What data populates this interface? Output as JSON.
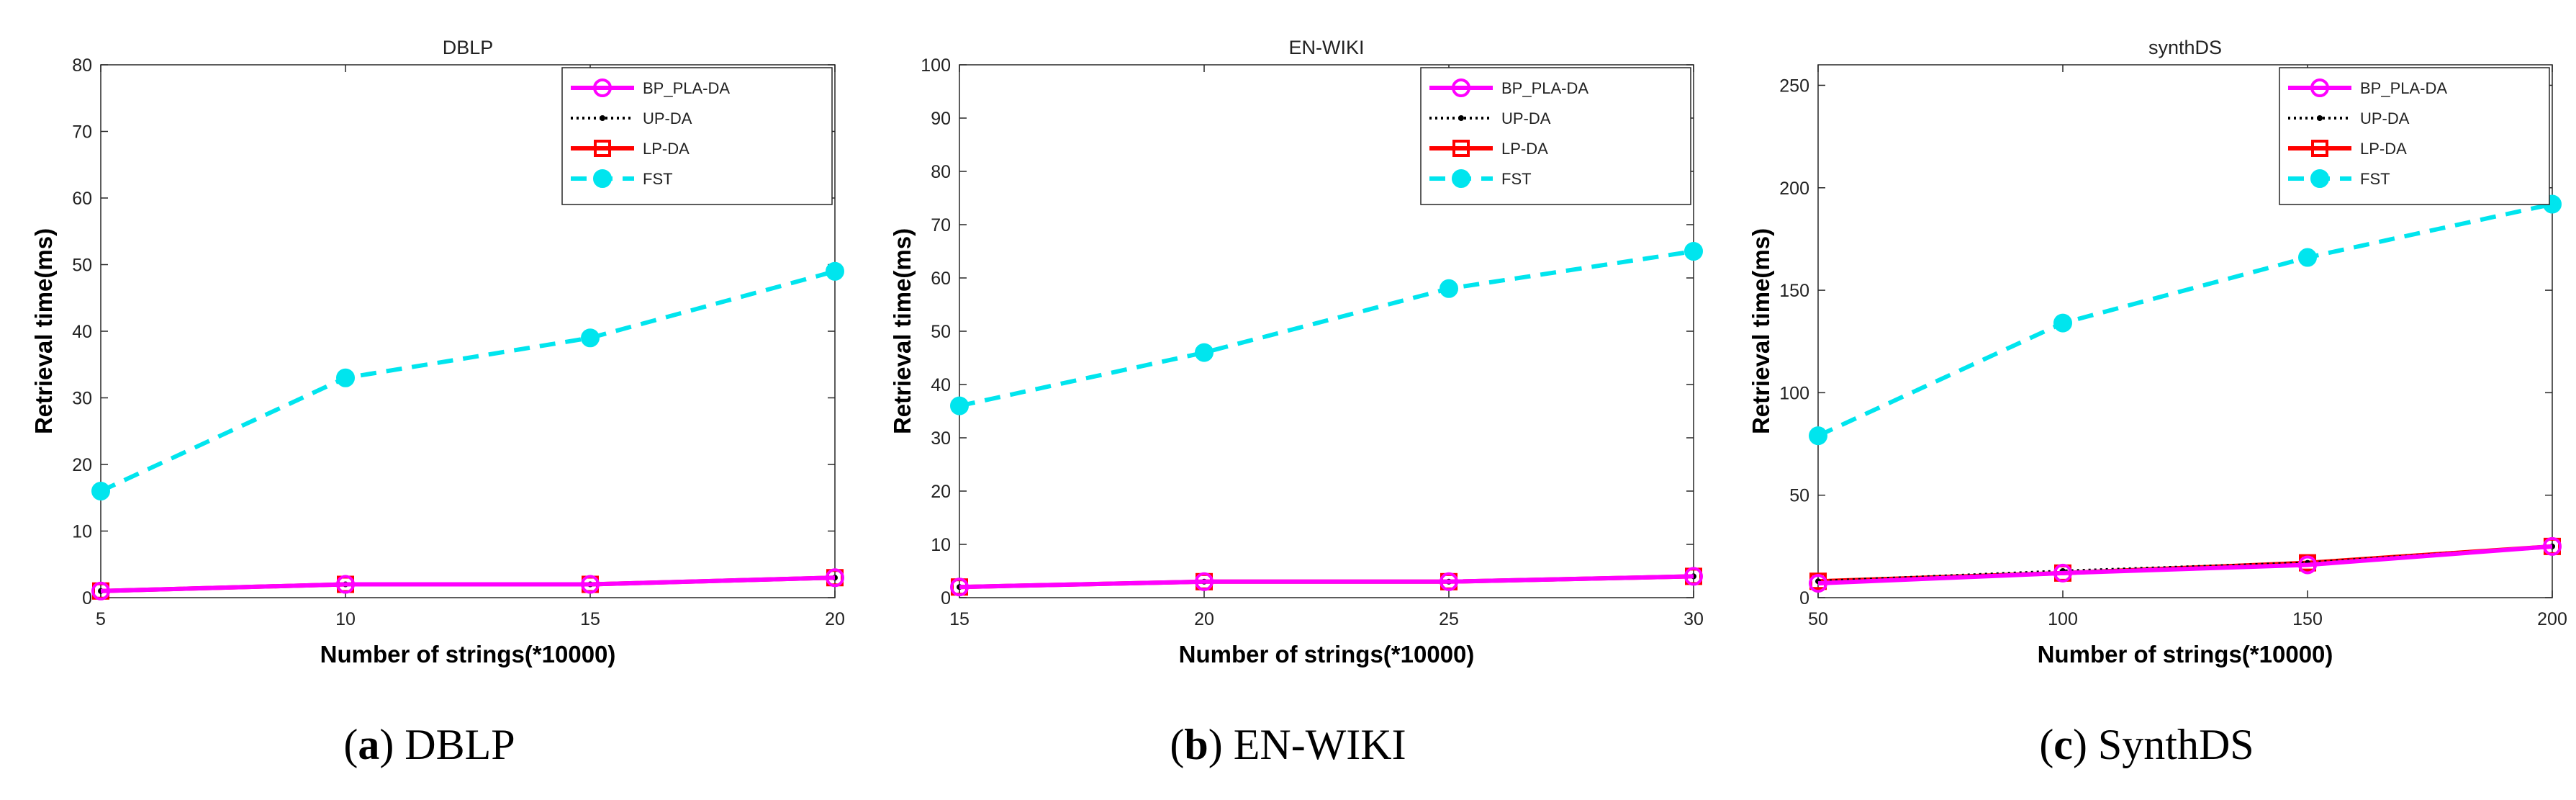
{
  "chart_data": [
    {
      "type": "line",
      "title": "DBLP",
      "xlabel": "Number of strings(*10000)",
      "ylabel": "Retrieval time(ms)",
      "x": [
        5,
        10,
        15,
        20
      ],
      "xlim": [
        5,
        20
      ],
      "ylim": [
        0,
        80
      ],
      "xticks": [
        5,
        10,
        15,
        20
      ],
      "yticks": [
        0,
        10,
        20,
        30,
        40,
        50,
        60,
        70,
        80
      ],
      "legend_position": "top-right",
      "series": [
        {
          "name": "BP_PLA-DA",
          "color": "#ff00ff",
          "style": "solid",
          "marker": "circle",
          "values": [
            1,
            2,
            2,
            3
          ]
        },
        {
          "name": "UP-DA",
          "color": "#000000",
          "style": "dotted",
          "marker": "dot",
          "values": [
            1,
            2,
            2,
            3
          ]
        },
        {
          "name": "LP-DA",
          "color": "#ff0000",
          "style": "solid",
          "marker": "square",
          "values": [
            1,
            2,
            2,
            3
          ]
        },
        {
          "name": "FST",
          "color": "#00e5ee",
          "style": "dashed",
          "marker": "filled-circle",
          "values": [
            16,
            33,
            39,
            49
          ]
        }
      ],
      "caption_letter": "a",
      "caption_text": " DBLP"
    },
    {
      "type": "line",
      "title": "EN-WIKI",
      "xlabel": "Number of strings(*10000)",
      "ylabel": "Retrieval time(ms)",
      "x": [
        15,
        20,
        25,
        30
      ],
      "xlim": [
        15,
        30
      ],
      "ylim": [
        0,
        100
      ],
      "xticks": [
        15,
        20,
        25,
        30
      ],
      "yticks": [
        0,
        10,
        20,
        30,
        40,
        50,
        60,
        70,
        80,
        90,
        100
      ],
      "legend_position": "top-right",
      "series": [
        {
          "name": "BP_PLA-DA",
          "color": "#ff00ff",
          "style": "solid",
          "marker": "circle",
          "values": [
            2,
            3,
            3,
            4
          ]
        },
        {
          "name": "UP-DA",
          "color": "#000000",
          "style": "dotted",
          "marker": "dot",
          "values": [
            2,
            3,
            3,
            4
          ]
        },
        {
          "name": "LP-DA",
          "color": "#ff0000",
          "style": "solid",
          "marker": "square",
          "values": [
            2,
            3,
            3,
            4
          ]
        },
        {
          "name": "FST",
          "color": "#00e5ee",
          "style": "dashed",
          "marker": "filled-circle",
          "values": [
            36,
            46,
            58,
            65
          ]
        }
      ],
      "caption_letter": "b",
      "caption_text": " EN-WIKI"
    },
    {
      "type": "line",
      "title": "synthDS",
      "xlabel": "Number of strings(*10000)",
      "ylabel": "Retrieval time(ms)",
      "x": [
        50,
        100,
        150,
        200
      ],
      "xlim": [
        50,
        200
      ],
      "ylim": [
        0,
        260
      ],
      "xticks": [
        50,
        100,
        150,
        200
      ],
      "yticks": [
        0,
        50,
        100,
        150,
        200,
        250
      ],
      "legend_position": "top-right",
      "series": [
        {
          "name": "BP_PLA-DA",
          "color": "#ff00ff",
          "style": "solid",
          "marker": "circle",
          "values": [
            7,
            12,
            16,
            25
          ]
        },
        {
          "name": "UP-DA",
          "color": "#000000",
          "style": "dotted",
          "marker": "dot",
          "values": [
            8,
            13,
            17,
            25
          ]
        },
        {
          "name": "LP-DA",
          "color": "#ff0000",
          "style": "solid",
          "marker": "square",
          "values": [
            8,
            12,
            17,
            25
          ]
        },
        {
          "name": "FST",
          "color": "#00e5ee",
          "style": "dashed",
          "marker": "filled-circle",
          "values": [
            79,
            134,
            166,
            192
          ]
        }
      ],
      "caption_letter": "c",
      "caption_text": " SynthDS"
    }
  ]
}
